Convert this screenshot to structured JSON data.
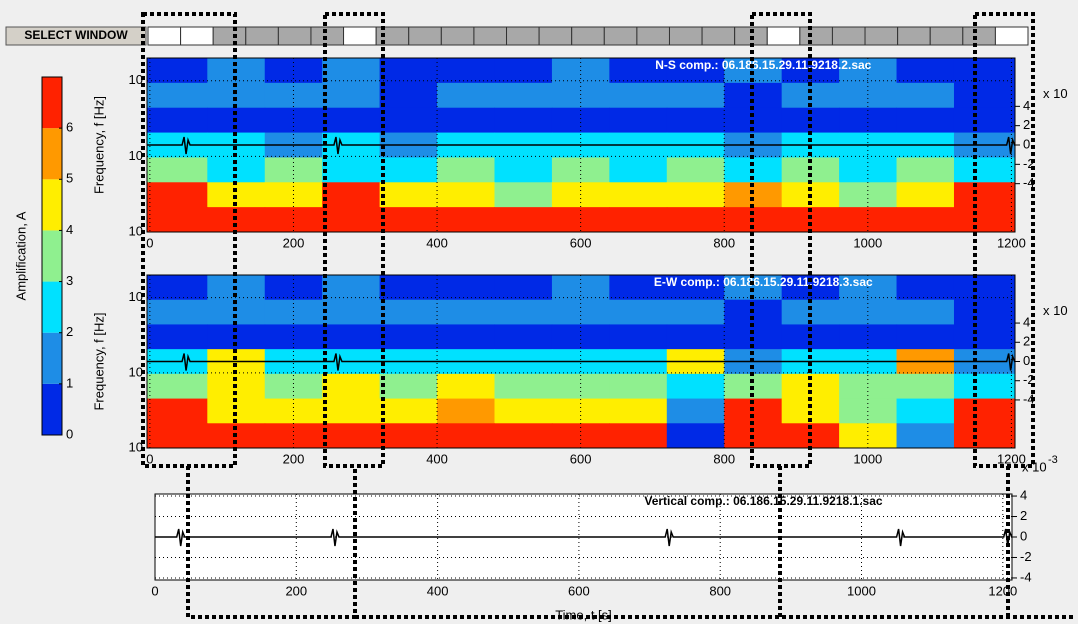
{
  "toolbar": {
    "button": "SELECT WINDOW"
  },
  "colorbar": {
    "label": "Amplification, A",
    "ticks": [
      0,
      1,
      2,
      3,
      4,
      5,
      6
    ],
    "lim": [
      0,
      7
    ],
    "colors": [
      "#0029e6",
      "#1e8de6",
      "#00e1ff",
      "#8ff08f",
      "#ffee00",
      "#ff9900",
      "#ff2200"
    ]
  },
  "panels": [
    {
      "title": "N-S comp.: 06.186.15.29.11.9218.2.sac",
      "ylabel": "Frequency, f [Hz]",
      "yticks": [
        {
          "value": 10,
          "label": "10"
        },
        {
          "value": 1,
          "label": "10"
        },
        {
          "value": 0.1,
          "label": "10"
        }
      ],
      "ylim": [
        0.1,
        20
      ],
      "log": true,
      "xlim": [
        -4,
        1205
      ],
      "xticks": [
        0,
        200,
        400,
        600,
        800,
        1000,
        1200
      ],
      "y2lim": [
        -9,
        9
      ],
      "y2ticks": [
        4,
        2,
        0,
        -2,
        -4
      ],
      "y2_multiplier": "x 10",
      "grid": true,
      "amplification": [
        [
          0.5,
          1.5,
          0.5,
          1.5,
          0.5,
          0.5,
          0.5,
          1.5,
          0.5,
          0.5,
          1.5,
          0.5,
          1.5,
          0.5,
          0.5
        ],
        [
          1.5,
          1.5,
          1.5,
          1.5,
          0.5,
          1.5,
          1.5,
          1.5,
          1.5,
          1.5,
          0.5,
          1.5,
          1.5,
          1.5,
          0.5
        ],
        [
          0.5,
          0.5,
          0.5,
          0.5,
          0.5,
          0.5,
          0.5,
          0.5,
          0.5,
          0.5,
          0.5,
          0.5,
          0.5,
          0.5,
          0.5
        ],
        [
          2.5,
          2.5,
          1.5,
          2.5,
          1.5,
          2.5,
          2.5,
          2.5,
          2.5,
          2.5,
          1.5,
          2.5,
          2.5,
          2.5,
          1.5
        ],
        [
          3.5,
          2.5,
          3.5,
          2.5,
          2.5,
          3.5,
          2.5,
          3.5,
          2.5,
          3.5,
          2.5,
          3.5,
          2.5,
          3.5,
          2.5
        ],
        [
          6.5,
          4.5,
          4.5,
          6.5,
          4.5,
          4.5,
          3.5,
          4.5,
          4.5,
          4.5,
          5.5,
          4.5,
          3.5,
          4.5,
          6.5
        ],
        [
          6.5,
          6.5,
          6.5,
          6.5,
          6.5,
          6.5,
          6.5,
          6.5,
          6.5,
          6.5,
          6.5,
          6.5,
          6.5,
          6.5,
          6.5
        ]
      ]
    },
    {
      "title": "E-W comp.: 06.186.15.29.11.9218.3.sac",
      "ylabel": "Frequency, f [Hz]",
      "yticks": [
        {
          "value": 10,
          "label": "10"
        },
        {
          "value": 1,
          "label": "10"
        },
        {
          "value": 0.1,
          "label": "10"
        }
      ],
      "ylim": [
        0.1,
        20
      ],
      "log": true,
      "xlim": [
        -4,
        1205
      ],
      "xticks": [
        0,
        200,
        400,
        600,
        800,
        1000,
        1200
      ],
      "y2lim": [
        -9,
        9
      ],
      "y2ticks": [
        4,
        2,
        0,
        -2,
        -4
      ],
      "y2_multiplier": "x 10",
      "grid": true,
      "amplification": [
        [
          0.5,
          1.5,
          0.5,
          1.5,
          0.5,
          0.5,
          0.5,
          1.5,
          0.5,
          0.5,
          1.5,
          0.5,
          1.5,
          0.5,
          0.5
        ],
        [
          1.5,
          1.5,
          1.5,
          1.5,
          1.5,
          1.5,
          1.5,
          1.5,
          1.5,
          1.5,
          0.5,
          1.5,
          1.5,
          1.5,
          0.5
        ],
        [
          0.5,
          0.5,
          0.5,
          0.5,
          0.5,
          0.5,
          0.5,
          0.5,
          0.5,
          0.5,
          0.5,
          0.5,
          0.5,
          0.5,
          0.5
        ],
        [
          2.5,
          4.5,
          2.5,
          2.5,
          2.5,
          2.5,
          2.5,
          2.5,
          2.5,
          4.5,
          1.5,
          2.5,
          2.5,
          5.5,
          1.5
        ],
        [
          3.5,
          4.5,
          3.5,
          4.5,
          3.5,
          4.5,
          3.5,
          3.5,
          3.5,
          2.5,
          3.5,
          4.5,
          3.5,
          3.5,
          2.5
        ],
        [
          6.5,
          4.5,
          4.5,
          4.5,
          4.5,
          5.5,
          4.5,
          4.5,
          4.5,
          1.5,
          6.5,
          4.5,
          3.5,
          2.5,
          6.5
        ],
        [
          6.5,
          6.5,
          6.5,
          6.5,
          6.5,
          6.5,
          6.5,
          6.5,
          6.5,
          0.5,
          6.5,
          6.5,
          4.5,
          1.5,
          6.5
        ]
      ]
    },
    {
      "title": "Vertical comp.: 06.186.15.29.11.9218.1.sac",
      "xlabel": "Time, t [s]",
      "xlim": [
        0,
        1213
      ],
      "xticks": [
        0,
        200,
        400,
        600,
        800,
        1000,
        1200
      ],
      "y2lim": [
        -4.2,
        4.2
      ],
      "y2ticks": [
        4,
        2,
        0,
        -2,
        -4
      ],
      "y2_multiplier": "x 10",
      "y2_exponent": "-3",
      "grid": true
    }
  ]
}
